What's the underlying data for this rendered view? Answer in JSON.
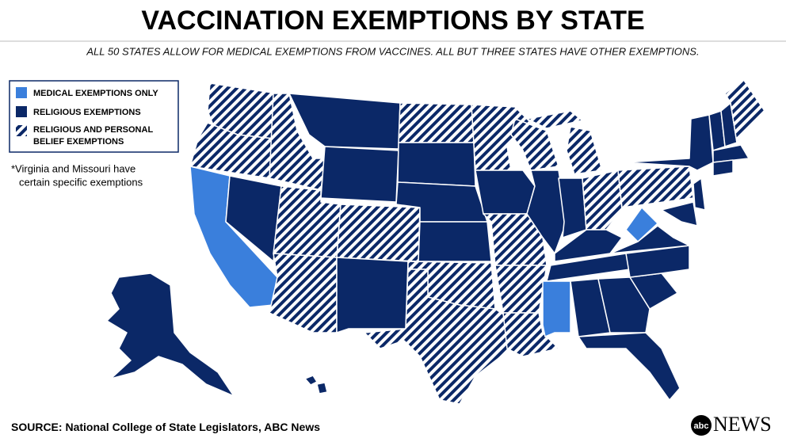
{
  "header": {
    "title": "VACCINATION EXEMPTIONS BY STATE",
    "subtitle": "ALL 50 STATES ALLOW FOR MEDICAL EXEMPTIONS FROM VACCINES. ALL BUT THREE STATES HAVE OTHER EXEMPTIONS."
  },
  "legend": {
    "items": [
      {
        "lines": [
          "MEDICAL EXEMPTIONS ONLY"
        ]
      },
      {
        "lines": [
          "RELIGIOUS EXEMPTIONS"
        ]
      },
      {
        "lines": [
          "RELIGIOUS AND PERSONAL",
          "BELIEF EXEMPTIONS"
        ]
      }
    ]
  },
  "note": {
    "lines": [
      "*Virginia and Missouri have",
      "certain specific exemptions"
    ]
  },
  "footer": {
    "source_label": "SOURCE:",
    "source_text": "National College of State Legislators, ABC News",
    "logo_badge": "abc",
    "logo_text": "NEWS"
  }
}
